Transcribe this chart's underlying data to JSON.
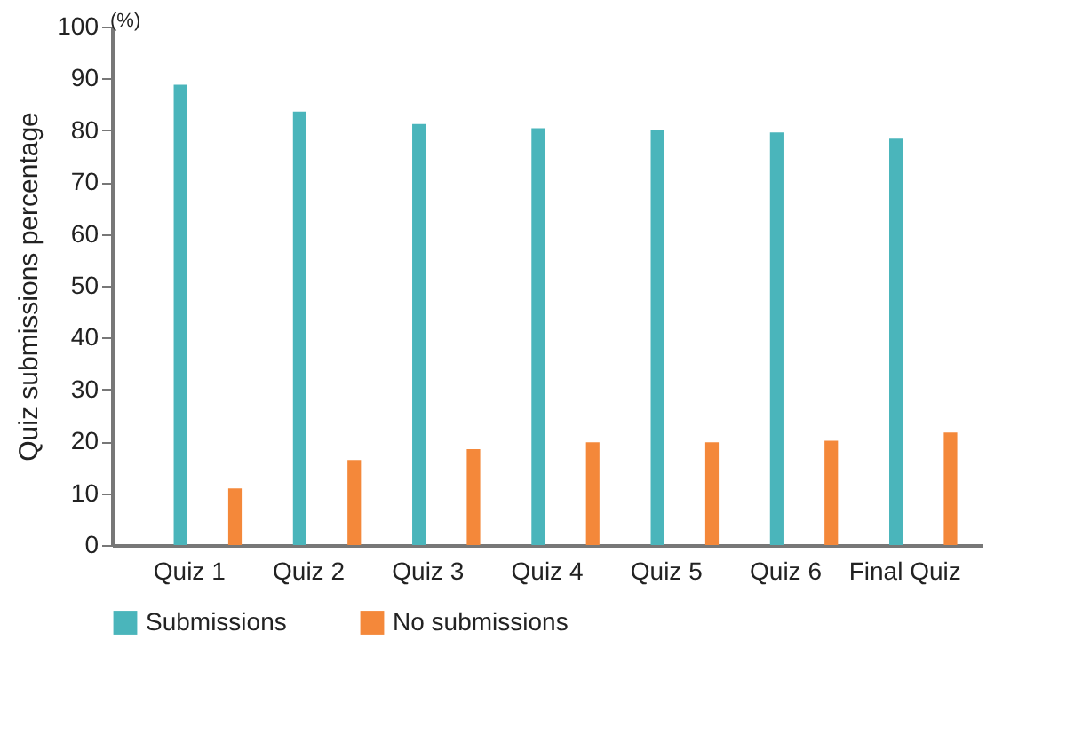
{
  "chart_data": {
    "type": "bar",
    "ylabel": "Quiz submissions percentage",
    "annotations": [
      "(%)"
    ],
    "categories": [
      "Quiz 1",
      "Quiz 2",
      "Quiz 3",
      "Quiz 4",
      "Quiz 5",
      "Quiz 6",
      "Final Quiz"
    ],
    "series": [
      {
        "name": "Submissions",
        "color": "#4ab5bb",
        "values": [
          88.8,
          83.6,
          81.2,
          80.4,
          80.0,
          79.6,
          78.4
        ]
      },
      {
        "name": "No submissions",
        "color": "#f4883a",
        "values": [
          10.9,
          16.4,
          18.5,
          19.8,
          19.8,
          20.1,
          21.7
        ]
      }
    ],
    "ylim": [
      0,
      100
    ],
    "yticks": [
      0,
      10,
      20,
      30,
      40,
      50,
      60,
      70,
      80,
      90,
      100
    ],
    "grid": false,
    "legend": "bottom"
  }
}
